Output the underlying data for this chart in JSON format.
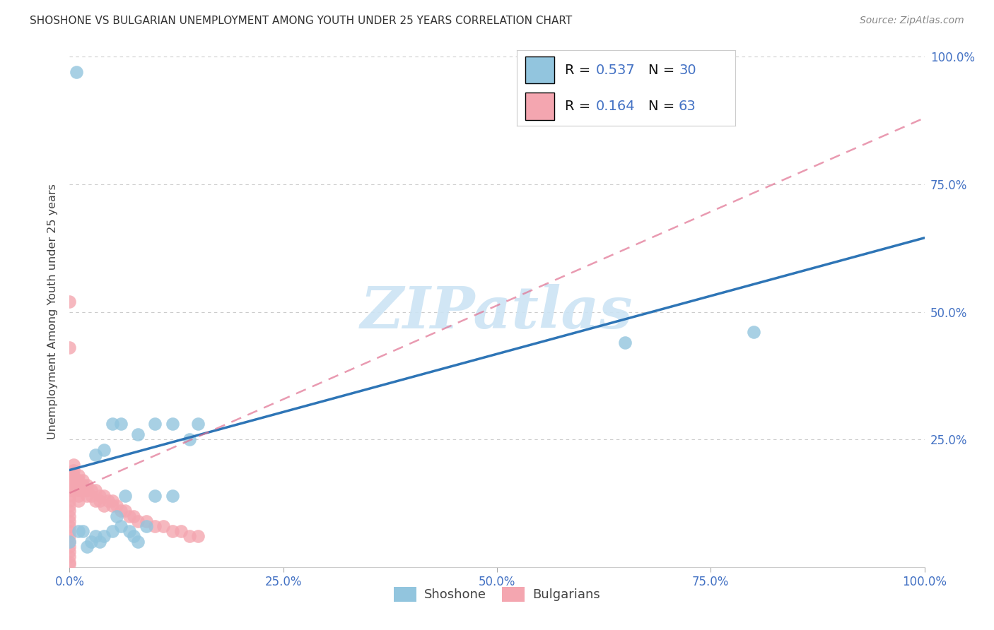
{
  "title": "SHOSHONE VS BULGARIAN UNEMPLOYMENT AMONG YOUTH UNDER 25 YEARS CORRELATION CHART",
  "source": "Source: ZipAtlas.com",
  "ylabel": "Unemployment Among Youth under 25 years",
  "xlim": [
    0,
    1.0
  ],
  "ylim": [
    0,
    1.0
  ],
  "xticks": [
    0.0,
    0.25,
    0.5,
    0.75,
    1.0
  ],
  "yticks": [
    0.0,
    0.25,
    0.5,
    0.75,
    1.0
  ],
  "xtick_labels": [
    "0.0%",
    "25.0%",
    "50.0%",
    "75.0%",
    "100.0%"
  ],
  "ytick_labels": [
    "",
    "25.0%",
    "50.0%",
    "75.0%",
    "100.0%"
  ],
  "right_ytick_labels": [
    "",
    "25.0%",
    "50.0%",
    "75.0%",
    "100.0%"
  ],
  "shoshone_color": "#92c5de",
  "bulgarian_color": "#f4a6b0",
  "shoshone_R": 0.537,
  "shoshone_N": 30,
  "bulgarian_R": 0.164,
  "bulgarian_N": 63,
  "shoshone_line_color": "#2e75b6",
  "bulgarian_line_color": "#e07090",
  "watermark_text": "ZIPatlas",
  "watermark_color": "#cce4f4",
  "background_color": "#ffffff",
  "grid_color": "#cccccc",
  "tick_color": "#4472c4",
  "legend_label_1": "Shoshone",
  "legend_label_2": "Bulgarians",
  "shoshone_x": [
    0.008,
    0.0,
    0.01,
    0.015,
    0.02,
    0.025,
    0.03,
    0.035,
    0.04,
    0.05,
    0.055,
    0.06,
    0.065,
    0.07,
    0.075,
    0.08,
    0.09,
    0.1,
    0.12,
    0.14,
    0.15,
    0.03,
    0.04,
    0.05,
    0.06,
    0.08,
    0.1,
    0.12,
    0.65,
    0.8
  ],
  "shoshone_y": [
    0.97,
    0.05,
    0.07,
    0.07,
    0.04,
    0.05,
    0.06,
    0.05,
    0.06,
    0.07,
    0.1,
    0.08,
    0.14,
    0.07,
    0.06,
    0.05,
    0.08,
    0.14,
    0.14,
    0.25,
    0.28,
    0.22,
    0.23,
    0.28,
    0.28,
    0.26,
    0.28,
    0.28,
    0.44,
    0.46
  ],
  "bulgarian_x": [
    0.0,
    0.0,
    0.0,
    0.0,
    0.0,
    0.0,
    0.0,
    0.0,
    0.0,
    0.0,
    0.0,
    0.0,
    0.0,
    0.0,
    0.0,
    0.0,
    0.0,
    0.0,
    0.0,
    0.0,
    0.005,
    0.005,
    0.005,
    0.005,
    0.005,
    0.005,
    0.01,
    0.01,
    0.01,
    0.01,
    0.01,
    0.01,
    0.015,
    0.015,
    0.015,
    0.02,
    0.02,
    0.02,
    0.025,
    0.025,
    0.03,
    0.03,
    0.035,
    0.035,
    0.04,
    0.04,
    0.045,
    0.05,
    0.05,
    0.055,
    0.06,
    0.065,
    0.07,
    0.075,
    0.08,
    0.09,
    0.1,
    0.11,
    0.12,
    0.13,
    0.14,
    0.15,
    0.0
  ],
  "bulgarian_y": [
    0.52,
    0.18,
    0.17,
    0.16,
    0.15,
    0.14,
    0.13,
    0.12,
    0.11,
    0.1,
    0.09,
    0.08,
    0.07,
    0.06,
    0.05,
    0.04,
    0.03,
    0.02,
    0.01,
    0.005,
    0.2,
    0.19,
    0.18,
    0.17,
    0.16,
    0.15,
    0.18,
    0.17,
    0.16,
    0.15,
    0.14,
    0.13,
    0.17,
    0.16,
    0.15,
    0.16,
    0.15,
    0.14,
    0.15,
    0.14,
    0.15,
    0.13,
    0.14,
    0.13,
    0.14,
    0.12,
    0.13,
    0.13,
    0.12,
    0.12,
    0.11,
    0.11,
    0.1,
    0.1,
    0.09,
    0.09,
    0.08,
    0.08,
    0.07,
    0.07,
    0.06,
    0.06,
    0.43
  ],
  "shoshone_line_x": [
    0.0,
    1.0
  ],
  "shoshone_line_y": [
    0.19,
    0.645
  ],
  "bulgarian_line_x": [
    0.0,
    1.0
  ],
  "bulgarian_line_y": [
    0.145,
    0.88
  ]
}
